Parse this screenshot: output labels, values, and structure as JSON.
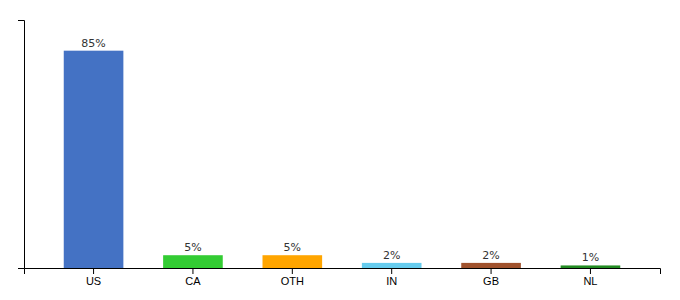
{
  "chart_data": {
    "type": "bar",
    "categories": [
      "US",
      "CA",
      "OTH",
      "IN",
      "GB",
      "NL"
    ],
    "values": [
      85,
      5,
      5,
      2,
      2,
      1
    ],
    "value_labels": [
      "85%",
      "5%",
      "5%",
      "2%",
      "2%",
      "1%"
    ],
    "colors": [
      "#4472C4",
      "#33CC33",
      "#FFA500",
      "#66CCEE",
      "#A0522D",
      "#228B22"
    ],
    "ylim": [
      0,
      97
    ],
    "data_labels": true,
    "tick_labels": "x"
  }
}
